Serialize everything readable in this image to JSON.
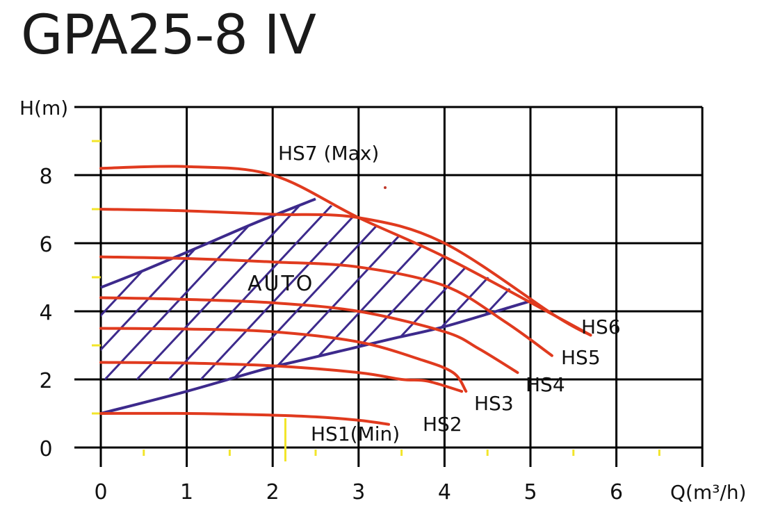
{
  "title": "GPA25-8 IV",
  "chart_data": {
    "type": "line",
    "title": "GPA25-8 IV",
    "xlabel": "Q(m³/h)",
    "ylabel": "H(m)",
    "xlim": [
      0,
      7
    ],
    "ylim": [
      0,
      10
    ],
    "x_ticks": [
      "0",
      "1",
      "2",
      "3",
      "4",
      "5",
      "6"
    ],
    "y_ticks": [
      "0",
      "2",
      "4",
      "6",
      "8"
    ],
    "grid": true,
    "colors": {
      "curve": "#e03a1e",
      "auto": "#3d2a8c",
      "grid": "#000000",
      "minor_tick": "#f2e52a"
    },
    "series": [
      {
        "name": "HS7 (Max)",
        "x": [
          0,
          1,
          2,
          3,
          4,
          5.3,
          5.7
        ],
        "y": [
          8.2,
          8.25,
          8.0,
          6.75,
          5.6,
          3.85,
          3.3
        ]
      },
      {
        "name": "HS6",
        "x": [
          0,
          1,
          2,
          3,
          4,
          5.3,
          5.7
        ],
        "y": [
          7.0,
          6.95,
          6.85,
          6.75,
          6.0,
          3.85,
          3.3
        ]
      },
      {
        "name": "HS5",
        "x": [
          0,
          1,
          2,
          3,
          4,
          4.7,
          5.25
        ],
        "y": [
          5.6,
          5.55,
          5.45,
          5.3,
          4.75,
          3.7,
          2.7
        ]
      },
      {
        "name": "HS4",
        "x": [
          0,
          1,
          2,
          3,
          4,
          4.4,
          4.85
        ],
        "y": [
          4.4,
          4.35,
          4.25,
          4.0,
          3.4,
          2.9,
          2.2
        ]
      },
      {
        "name": "HS3",
        "x": [
          0,
          1,
          2,
          3,
          3.7,
          4.1,
          4.25
        ],
        "y": [
          3.5,
          3.48,
          3.4,
          3.1,
          2.6,
          2.2,
          1.65
        ]
      },
      {
        "name": "HS2",
        "x": [
          0,
          1,
          2,
          3,
          3.5,
          3.8,
          4.2
        ],
        "y": [
          2.5,
          2.48,
          2.4,
          2.2,
          2.0,
          1.95,
          1.65
        ]
      },
      {
        "name": "HS1(Min)",
        "x": [
          0,
          1,
          2,
          2.5,
          3.0,
          3.35
        ],
        "y": [
          1.0,
          1.0,
          0.95,
          0.9,
          0.8,
          0.68
        ]
      }
    ],
    "auto_region": {
      "label": "AUTO",
      "upper": {
        "x": [
          0,
          0.5,
          1.2,
          1.8,
          2.5
        ],
        "y": [
          4.7,
          5.2,
          5.95,
          6.6,
          7.3
        ]
      },
      "lower": {
        "x": [
          0,
          1.0,
          1.9,
          2.4,
          2.9,
          3.4,
          4.0,
          4.8,
          5.0
        ],
        "y": [
          1.0,
          1.65,
          2.3,
          2.6,
          2.9,
          3.2,
          3.55,
          4.15,
          4.3
        ]
      }
    },
    "annotations": [
      "HS7 (Max)",
      "AUTO",
      "HS6",
      "HS5",
      "HS4",
      "HS3",
      "HS2",
      "HS1(Min)"
    ]
  },
  "labels": {
    "hs7": "HS7 (Max)",
    "hs6": "HS6",
    "hs5": "HS5",
    "hs4": "HS4",
    "hs3": "HS3",
    "hs2": "HS2",
    "hs1": "HS1(Min)",
    "auto": "AUTO",
    "y_axis": "H(m)",
    "x_axis": "Q(m³/h)"
  }
}
